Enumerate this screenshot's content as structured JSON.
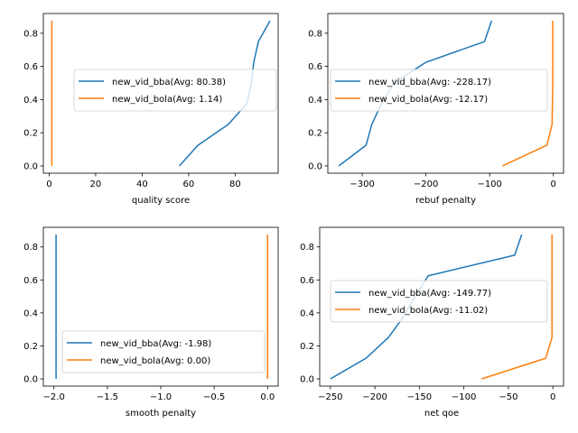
{
  "chart_data": [
    {
      "type": "line",
      "xlabel": "quality score",
      "ylabel": "",
      "xlim": [
        -2.5,
        98.5
      ],
      "ylim": [
        -0.04375,
        0.91875
      ],
      "xticks": [
        0,
        20,
        40,
        60,
        80
      ],
      "yticks": [
        0.0,
        0.2,
        0.4,
        0.6,
        0.8
      ],
      "legend_position": "center-right",
      "series": [
        {
          "name": "new_vid_bba(Avg: 80.38)",
          "color": "#1f77b4",
          "points": [
            [
              56,
              0.0
            ],
            [
              64,
              0.125
            ],
            [
              77,
              0.25
            ],
            [
              85,
              0.375
            ],
            [
              87,
              0.5
            ],
            [
              88,
              0.625
            ],
            [
              90,
              0.75
            ],
            [
              95,
              0.875
            ]
          ]
        },
        {
          "name": "new_vid_bola(Avg: 1.14)",
          "color": "#ff7f0e",
          "points": [
            [
              1.14,
              0.0
            ],
            [
              1.14,
              0.875
            ]
          ]
        }
      ]
    },
    {
      "type": "line",
      "xlabel": "rebuf penalty",
      "ylabel": "",
      "xlim": [
        -354,
        16
      ],
      "ylim": [
        -0.04375,
        0.91875
      ],
      "xticks": [
        -300,
        -200,
        -100,
        0
      ],
      "yticks": [
        0.0,
        0.2,
        0.4,
        0.6,
        0.8
      ],
      "legend_position": "center-left",
      "series": [
        {
          "name": "new_vid_bba(Avg: -228.17)",
          "color": "#1f77b4",
          "points": [
            [
              -337,
              0.0
            ],
            [
              -294,
              0.125
            ],
            [
              -285,
              0.25
            ],
            [
              -270,
              0.375
            ],
            [
              -250,
              0.5
            ],
            [
              -200,
              0.625
            ],
            [
              -108,
              0.75
            ],
            [
              -97,
              0.875
            ]
          ]
        },
        {
          "name": "new_vid_bola(Avg: -12.17)",
          "color": "#ff7f0e",
          "points": [
            [
              -80,
              0.0
            ],
            [
              -10,
              0.125
            ],
            [
              -2,
              0.25
            ],
            [
              -1,
              0.5
            ],
            [
              -1,
              0.875
            ]
          ]
        }
      ]
    },
    {
      "type": "line",
      "xlabel": "smooth penalty",
      "ylabel": "",
      "xlim": [
        -2.099,
        0.099
      ],
      "ylim": [
        -0.04375,
        0.91875
      ],
      "xticks": [
        -2.0,
        -1.5,
        -1.0,
        -0.5,
        0.0
      ],
      "yticks": [
        0.0,
        0.2,
        0.4,
        0.6,
        0.8
      ],
      "legend_position": "lower-center",
      "series": [
        {
          "name": "new_vid_bba(Avg: -1.98)",
          "color": "#1f77b4",
          "points": [
            [
              -1.98,
              0.0
            ],
            [
              -1.98,
              0.875
            ]
          ]
        },
        {
          "name": "new_vid_bola(Avg: 0.00)",
          "color": "#ff7f0e",
          "points": [
            [
              0.0,
              0.0
            ],
            [
              0.0,
              0.875
            ]
          ]
        }
      ]
    },
    {
      "type": "line",
      "xlabel": "net qoe",
      "ylabel": "",
      "xlim": [
        -262,
        12
      ],
      "ylim": [
        -0.04375,
        0.91875
      ],
      "xticks": [
        -250,
        -200,
        -150,
        -100,
        -50,
        0
      ],
      "yticks": [
        0.0,
        0.2,
        0.4,
        0.6,
        0.8
      ],
      "legend_position": "center-right",
      "series": [
        {
          "name": "new_vid_bba(Avg: -149.77)",
          "color": "#1f77b4",
          "points": [
            [
              -250,
              0.0
            ],
            [
              -210,
              0.125
            ],
            [
              -185,
              0.25
            ],
            [
              -168,
              0.375
            ],
            [
              -155,
              0.5
            ],
            [
              -140,
              0.625
            ],
            [
              -43,
              0.75
            ],
            [
              -35,
              0.875
            ]
          ]
        },
        {
          "name": "new_vid_bola(Avg: -11.02)",
          "color": "#ff7f0e",
          "points": [
            [
              -80,
              0.0
            ],
            [
              -8,
              0.125
            ],
            [
              -1,
              0.25
            ],
            [
              -1,
              0.875
            ]
          ]
        }
      ]
    }
  ]
}
